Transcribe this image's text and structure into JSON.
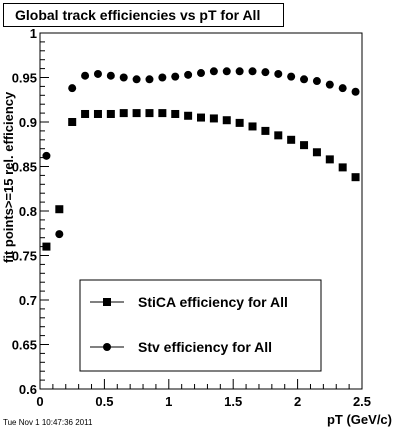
{
  "timestamp": "Tue Nov  1 10:47:36 2011",
  "chart_data": {
    "type": "scatter",
    "title": "Global track efficiencies vs pT for All",
    "xlabel": "pT (GeV/c)",
    "ylabel": "fit points>=15 rel. efficiency",
    "xlim": [
      0,
      2.5
    ],
    "ylim": [
      0.6,
      1.0
    ],
    "xticks": [
      "0",
      "0.5",
      "1",
      "1.5",
      "2",
      "2.5"
    ],
    "yticks": [
      "0.6",
      "0.65",
      "0.7",
      "0.75",
      "0.8",
      "0.85",
      "0.9",
      "0.95",
      "1"
    ],
    "legend_position": "bottom-center",
    "series": [
      {
        "name": "StiCA efficiency  for All",
        "marker": "square",
        "color": "#000000",
        "x": [
          0.05,
          0.15,
          0.25,
          0.35,
          0.45,
          0.55,
          0.65,
          0.75,
          0.85,
          0.95,
          1.05,
          1.15,
          1.25,
          1.35,
          1.45,
          1.55,
          1.65,
          1.75,
          1.85,
          1.95,
          2.05,
          2.15,
          2.25,
          2.35,
          2.45
        ],
        "y": [
          0.76,
          0.802,
          0.9,
          0.909,
          0.909,
          0.909,
          0.91,
          0.91,
          0.91,
          0.91,
          0.909,
          0.907,
          0.905,
          0.904,
          0.902,
          0.899,
          0.895,
          0.89,
          0.885,
          0.88,
          0.874,
          0.866,
          0.858,
          0.849,
          0.838
        ]
      },
      {
        "name": "Stv efficiency  for All",
        "marker": "circle",
        "color": "#000000",
        "x": [
          0.05,
          0.15,
          0.25,
          0.35,
          0.45,
          0.55,
          0.65,
          0.75,
          0.85,
          0.95,
          1.05,
          1.15,
          1.25,
          1.35,
          1.45,
          1.55,
          1.65,
          1.75,
          1.85,
          1.95,
          2.05,
          2.15,
          2.25,
          2.35,
          2.45
        ],
        "y": [
          0.862,
          0.774,
          0.938,
          0.952,
          0.954,
          0.952,
          0.95,
          0.948,
          0.948,
          0.95,
          0.951,
          0.953,
          0.955,
          0.957,
          0.957,
          0.957,
          0.957,
          0.956,
          0.954,
          0.951,
          0.948,
          0.946,
          0.942,
          0.938,
          0.934
        ]
      }
    ]
  }
}
